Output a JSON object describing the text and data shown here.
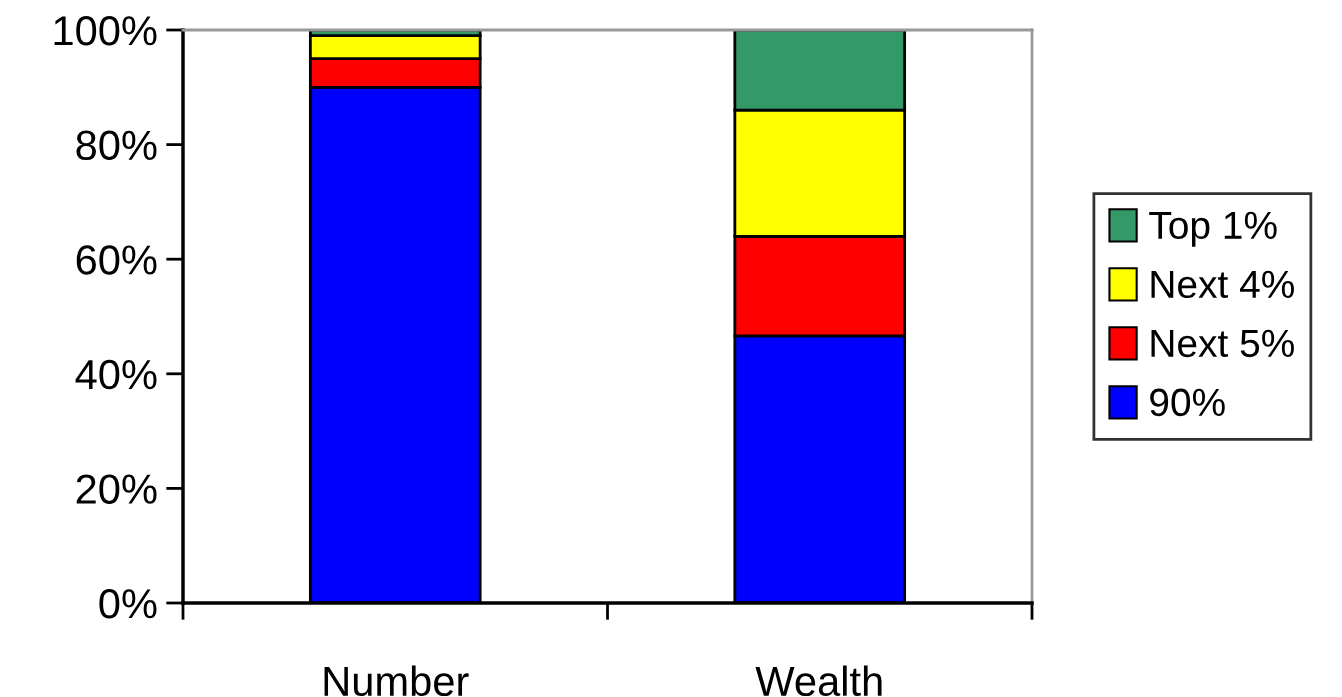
{
  "chart_data": {
    "type": "bar",
    "stacked": true,
    "categories": [
      "Number",
      "Wealth"
    ],
    "series": [
      {
        "name": "90%",
        "color": "#0000ff",
        "values": [
          90,
          46.6
        ]
      },
      {
        "name": "Next 5%",
        "color": "#ff0000",
        "values": [
          5,
          17.4
        ]
      },
      {
        "name": "Next 4%",
        "color": "#ffff00",
        "values": [
          4,
          22
        ]
      },
      {
        "name": "Top 1%",
        "color": "#339966",
        "values": [
          1,
          14
        ]
      }
    ],
    "ylim": [
      0,
      100
    ],
    "yticks": [
      {
        "value": 0,
        "label": "0%"
      },
      {
        "value": 20,
        "label": "20%"
      },
      {
        "value": 40,
        "label": "40%"
      },
      {
        "value": 60,
        "label": "60%"
      },
      {
        "value": 80,
        "label": "80%"
      },
      {
        "value": 100,
        "label": "100%"
      }
    ],
    "grid": false,
    "legend": "right"
  }
}
